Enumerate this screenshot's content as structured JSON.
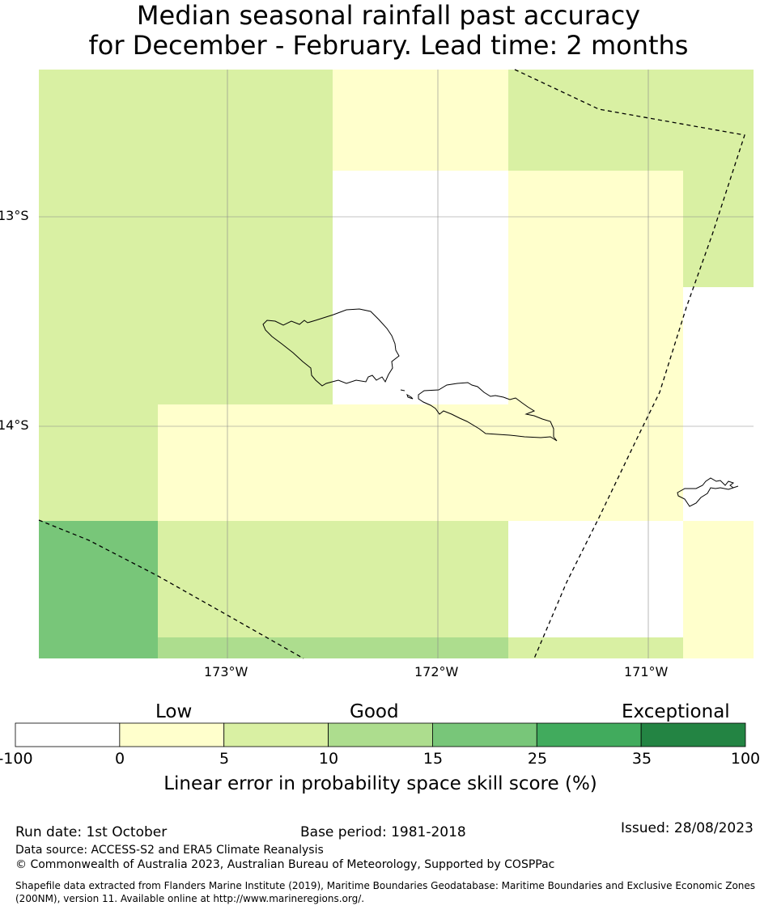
{
  "title": {
    "line1": "Median seasonal rainfall past accuracy",
    "line2": "for December - February. Lead time: 2 months"
  },
  "map": {
    "lat_labels": [
      "13°S",
      "14°S"
    ],
    "lon_labels": [
      "173°W",
      "172°W",
      "171°W"
    ],
    "colors": {
      "white": "#ffffff",
      "pale_yellow": "#ffffcc",
      "light_green": "#d9f0a3",
      "mid_green": "#addd8e",
      "green": "#78c679",
      "dark_green": "#41ab5d",
      "darkest_green": "#238443"
    }
  },
  "colorbar": {
    "categories": [
      "Low",
      "Good",
      "Exceptional"
    ],
    "ticks": [
      "-100",
      "0",
      "5",
      "10",
      "15",
      "25",
      "35",
      "100"
    ],
    "colors": [
      "#ffffff",
      "#ffffcc",
      "#d9f0a3",
      "#addd8e",
      "#78c679",
      "#41ab5d",
      "#238443"
    ],
    "label": "Linear error in probability space skill score (%)"
  },
  "footer": {
    "run_date": "Run date: 1st October",
    "base_period": "Base period: 1981-2018",
    "issued": "Issued: 28/08/2023",
    "data_source": "Data source: ACCESS-S2 and ERA5 Climate Reanalysis",
    "copyright": "© Commonwealth of Australia 2023, Australian Bureau of Meteorology, Supported by COSPPac",
    "shapefile": "Shapefile data extracted from Flanders Marine Institute (2019), Maritime Boundaries Geodatabase: Maritime Boundaries and Exclusive Economic Zones (200NM), version 11. Available online at http://www.marineregions.org/."
  }
}
